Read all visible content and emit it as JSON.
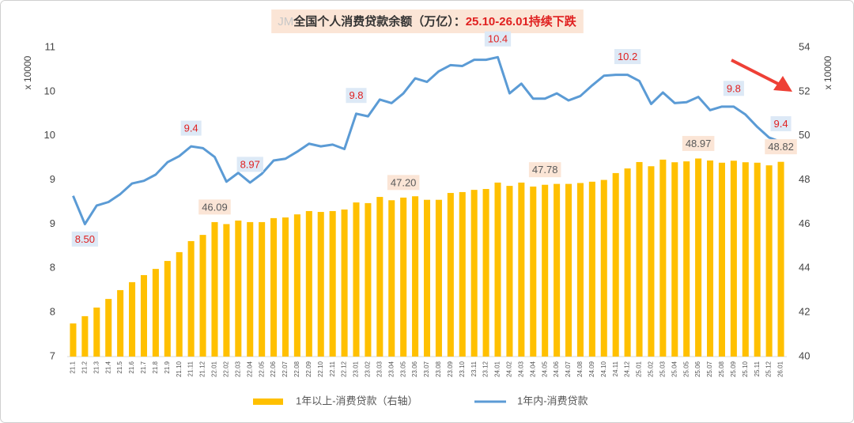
{
  "chart_data": {
    "type": "combo",
    "title_prefix": "JM",
    "title": "全国个人消费贷款余额（万亿）：",
    "title_highlight": "25.10-26.01持续下跌",
    "ylabel": "x 10000",
    "y2label": "x 10000",
    "grid": false,
    "legend": "bottom",
    "categories": [
      "21.1",
      "21.2",
      "21.3",
      "21.4",
      "21.5",
      "21.6",
      "21.7",
      "21.8",
      "21.9",
      "21.10",
      "21.11",
      "21.12",
      "22.01",
      "22.02",
      "22.03",
      "22.04",
      "22.05",
      "22.06",
      "22.07",
      "22.08",
      "22.09",
      "22.10",
      "22.11",
      "22.12",
      "23.01",
      "23.02",
      "23.03",
      "23.04",
      "23.05",
      "23.06",
      "23.07",
      "23.08",
      "23.09",
      "23.10",
      "23.11",
      "23.12",
      "24.01",
      "24.02",
      "24.03",
      "24.04",
      "24.05",
      "24.06",
      "24.07",
      "24.08",
      "24.09",
      "24.10",
      "24.11",
      "24.12",
      "25.01",
      "25.02",
      "25.03",
      "25.04",
      "25.05",
      "25.06",
      "25.07",
      "25.08",
      "25.09",
      "25.10",
      "25.11",
      "25.12",
      "26.01"
    ],
    "ylim": [
      7,
      10.5
    ],
    "yticks": [
      {
        "value": 7,
        "label": "7"
      },
      {
        "value": 7.5,
        "label": "8"
      },
      {
        "value": 8,
        "label": "8"
      },
      {
        "value": 8.5,
        "label": "9"
      },
      {
        "value": 9,
        "label": "9"
      },
      {
        "value": 9.5,
        "label": "10"
      },
      {
        "value": 10,
        "label": "10"
      },
      {
        "value": 10.5,
        "label": "11"
      }
    ],
    "y2lim": [
      40,
      54
    ],
    "y2ticks": [
      40,
      42,
      44,
      46,
      48,
      50,
      52,
      54
    ],
    "series": [
      {
        "name": "1年以上-消费贷款（右轴）",
        "type": "bar",
        "axis": "y2",
        "color": "#FFC000",
        "values": [
          41.5,
          41.83,
          42.22,
          42.61,
          43.01,
          43.37,
          43.69,
          43.97,
          44.33,
          44.73,
          45.23,
          45.51,
          46.09,
          46.0,
          46.16,
          46.09,
          46.09,
          46.27,
          46.3,
          46.44,
          46.59,
          46.55,
          46.59,
          46.66,
          46.98,
          46.95,
          47.23,
          47.08,
          47.2,
          47.26,
          47.1,
          47.1,
          47.41,
          47.45,
          47.55,
          47.59,
          47.88,
          47.73,
          47.88,
          47.7,
          47.78,
          47.82,
          47.82,
          47.86,
          47.92,
          48.0,
          48.31,
          48.52,
          48.81,
          48.62,
          48.92,
          48.8,
          48.84,
          48.97,
          48.88,
          48.78,
          48.87,
          48.8,
          48.78,
          48.66,
          48.82
        ],
        "value_labels": [
          null,
          null,
          null,
          null,
          null,
          null,
          null,
          null,
          null,
          null,
          null,
          null,
          "46.09",
          null,
          null,
          null,
          null,
          null,
          null,
          null,
          null,
          null,
          null,
          null,
          null,
          null,
          null,
          null,
          "47.20",
          null,
          null,
          null,
          null,
          null,
          null,
          null,
          null,
          null,
          null,
          null,
          "47.78",
          null,
          null,
          null,
          null,
          null,
          null,
          null,
          null,
          null,
          null,
          null,
          null,
          "48.97",
          null,
          null,
          null,
          null,
          null,
          null,
          "48.82"
        ]
      },
      {
        "name": "1年内-消费贷款",
        "type": "line",
        "axis": "y",
        "color": "#5B9BD5",
        "values": [
          8.82,
          8.5,
          8.71,
          8.75,
          8.84,
          8.96,
          8.99,
          9.06,
          9.2,
          9.27,
          9.38,
          9.36,
          9.26,
          8.98,
          9.08,
          8.97,
          9.07,
          9.22,
          9.24,
          9.32,
          9.41,
          9.38,
          9.4,
          9.35,
          9.75,
          9.72,
          9.91,
          9.87,
          9.98,
          10.15,
          10.11,
          10.23,
          10.3,
          10.29,
          10.36,
          10.36,
          10.39,
          9.98,
          10.09,
          9.92,
          9.92,
          9.98,
          9.9,
          9.95,
          10.07,
          10.18,
          10.19,
          10.19,
          10.12,
          9.86,
          9.99,
          9.87,
          9.88,
          9.94,
          9.79,
          9.83,
          9.83,
          9.74,
          9.6,
          9.48,
          9.43
        ],
        "value_labels": [
          null,
          "8.50",
          null,
          null,
          null,
          null,
          null,
          null,
          null,
          null,
          "9.4",
          null,
          null,
          null,
          null,
          "8.97",
          null,
          null,
          null,
          null,
          null,
          null,
          null,
          null,
          "9.8",
          null,
          null,
          null,
          null,
          null,
          null,
          null,
          null,
          null,
          null,
          null,
          "10.4",
          null,
          null,
          null,
          null,
          null,
          null,
          null,
          null,
          null,
          null,
          "10.2",
          null,
          null,
          null,
          null,
          null,
          null,
          null,
          null,
          "9.8",
          null,
          null,
          null,
          "9.4"
        ]
      }
    ]
  }
}
